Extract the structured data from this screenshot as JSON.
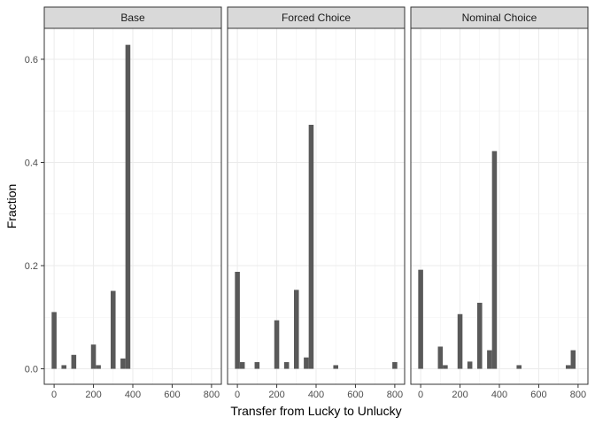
{
  "chart_data": {
    "type": "bar",
    "xlabel": "Transfer from Lucky to Unlucky",
    "ylabel": "Fraction",
    "xlim": [
      -50,
      850
    ],
    "ylim": [
      -0.03,
      0.66
    ],
    "x_ticks": [
      0,
      200,
      400,
      600,
      800
    ],
    "y_ticks": [
      0.0,
      0.2,
      0.4,
      0.6
    ],
    "y_tick_labels": [
      "0.0",
      "0.2",
      "0.4",
      "0.6"
    ],
    "bin_width": 25,
    "grid": true,
    "bar_color": "#595959",
    "panels": [
      {
        "title": "Base",
        "bars": [
          {
            "x": 0,
            "value": 0.11
          },
          {
            "x": 50,
            "value": 0.007
          },
          {
            "x": 100,
            "value": 0.027
          },
          {
            "x": 200,
            "value": 0.047
          },
          {
            "x": 225,
            "value": 0.007
          },
          {
            "x": 300,
            "value": 0.151
          },
          {
            "x": 350,
            "value": 0.02
          },
          {
            "x": 375,
            "value": 0.628
          }
        ]
      },
      {
        "title": "Forced Choice",
        "bars": [
          {
            "x": 0,
            "value": 0.188
          },
          {
            "x": 25,
            "value": 0.013
          },
          {
            "x": 100,
            "value": 0.013
          },
          {
            "x": 200,
            "value": 0.094
          },
          {
            "x": 250,
            "value": 0.013
          },
          {
            "x": 300,
            "value": 0.153
          },
          {
            "x": 350,
            "value": 0.022
          },
          {
            "x": 375,
            "value": 0.473
          },
          {
            "x": 500,
            "value": 0.007
          },
          {
            "x": 800,
            "value": 0.013
          }
        ]
      },
      {
        "title": "Nominal Choice",
        "bars": [
          {
            "x": 0,
            "value": 0.192
          },
          {
            "x": 100,
            "value": 0.043
          },
          {
            "x": 125,
            "value": 0.007
          },
          {
            "x": 200,
            "value": 0.106
          },
          {
            "x": 250,
            "value": 0.014
          },
          {
            "x": 300,
            "value": 0.128
          },
          {
            "x": 350,
            "value": 0.036
          },
          {
            "x": 375,
            "value": 0.422
          },
          {
            "x": 500,
            "value": 0.007
          },
          {
            "x": 750,
            "value": 0.007
          },
          {
            "x": 775,
            "value": 0.036
          }
        ]
      }
    ]
  }
}
